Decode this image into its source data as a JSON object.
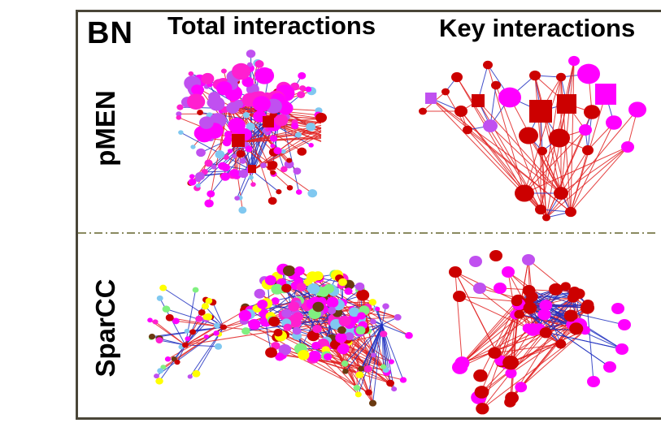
{
  "figure": {
    "tag": "BN",
    "columns": [
      "Total interactions",
      "Key interactions"
    ],
    "rows": [
      "pMEN",
      "SparCC"
    ]
  },
  "colors": {
    "frame": "#4a4638",
    "divider": "#8a8a60",
    "positive_edge": "#e02020",
    "negative_edge": "#2030c0",
    "node_magenta": "#ff00ff",
    "node_pink": "#ff1fd0",
    "node_darkred": "#cc0000",
    "node_violet": "#c050f0",
    "node_lightblue": "#80c8f0",
    "node_lightgreen": "#80f080",
    "node_yellow": "#ffff00",
    "node_brown": "#6a3a10",
    "node_dark": "#401010"
  },
  "panels": [
    {
      "row": "pMEN",
      "column": "Total interactions",
      "shape_legend": "circles and squares"
    },
    {
      "row": "pMEN",
      "column": "Key interactions"
    },
    {
      "row": "SparCC",
      "column": "Total interactions"
    },
    {
      "row": "SparCC",
      "column": "Key interactions"
    }
  ]
}
